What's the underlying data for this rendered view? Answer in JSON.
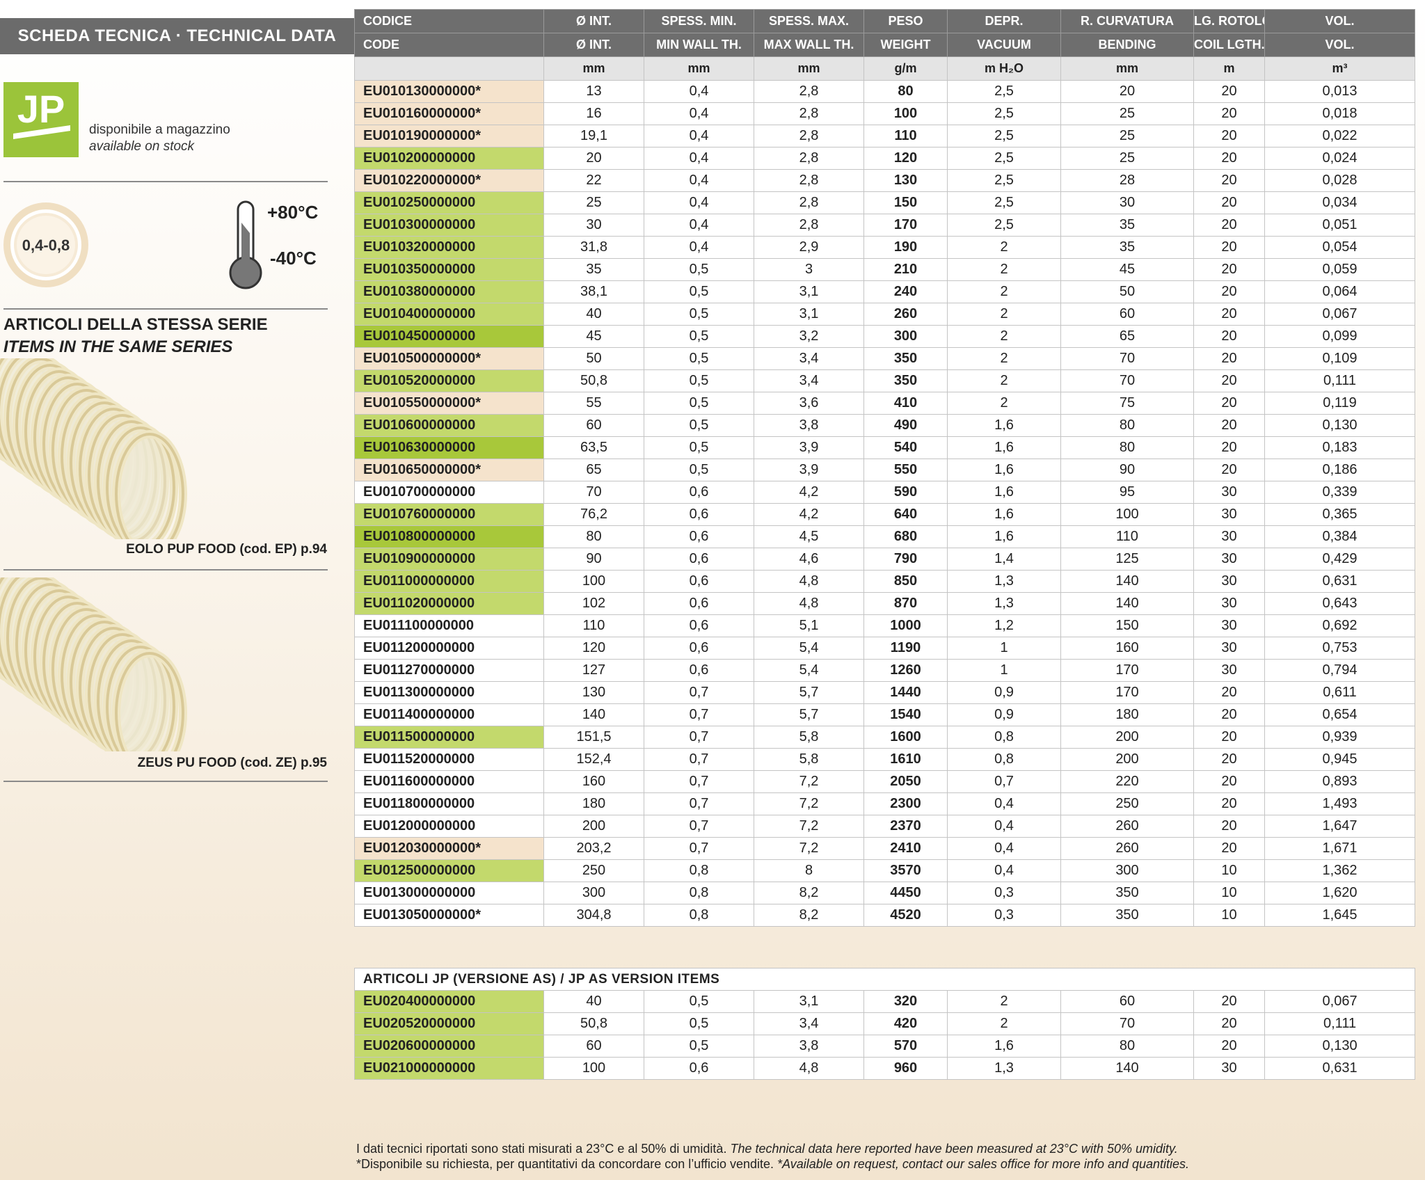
{
  "header": {
    "title": "SCHEDA TECNICA · TECHNICAL DATA"
  },
  "sidebar": {
    "logo": "JP",
    "stock_it": "disponibile a magazzino",
    "stock_en": "available on stock",
    "thickness": "0,4-0,8",
    "temp_max": "+80°C",
    "temp_min": "-40°C",
    "series_it": "ARTICOLI DELLA STESSA SERIE",
    "series_en": "ITEMS IN THE SAME SERIES",
    "item1": "EOLO PUP FOOD (cod. EP) p.94",
    "item2": "ZEUS PU FOOD (cod. ZE) p.95"
  },
  "table": {
    "header_it": [
      "CODICE",
      "Ø INT.",
      "SPESS. MIN.",
      "SPESS. MAX.",
      "PESO",
      "DEPR.",
      "R. CURVATURA",
      "LG. ROTOLO",
      "VOL."
    ],
    "header_en": [
      "CODE",
      "Ø INT.",
      "MIN WALL TH.",
      "MAX WALL TH.",
      "WEIGHT",
      "VACUUM",
      "BENDING",
      "COIL LGTH.",
      "VOL."
    ],
    "units": [
      "mm",
      "mm",
      "mm",
      "g/m",
      "m H₂O",
      "mm",
      "m",
      "m³"
    ],
    "rows": [
      [
        "EU010130000000*",
        "13",
        "0,4",
        "2,8",
        "80",
        "2,5",
        "20",
        "20",
        "0,013"
      ],
      [
        "EU010160000000*",
        "16",
        "0,4",
        "2,8",
        "100",
        "2,5",
        "25",
        "20",
        "0,018"
      ],
      [
        "EU010190000000*",
        "19,1",
        "0,4",
        "2,8",
        "110",
        "2,5",
        "25",
        "20",
        "0,022"
      ],
      [
        "EU010200000000",
        "20",
        "0,4",
        "2,8",
        "120",
        "2,5",
        "25",
        "20",
        "0,024"
      ],
      [
        "EU010220000000*",
        "22",
        "0,4",
        "2,8",
        "130",
        "2,5",
        "28",
        "20",
        "0,028"
      ],
      [
        "EU010250000000",
        "25",
        "0,4",
        "2,8",
        "150",
        "2,5",
        "30",
        "20",
        "0,034"
      ],
      [
        "EU010300000000",
        "30",
        "0,4",
        "2,8",
        "170",
        "2,5",
        "35",
        "20",
        "0,051"
      ],
      [
        "EU010320000000",
        "31,8",
        "0,4",
        "2,9",
        "190",
        "2",
        "35",
        "20",
        "0,054"
      ],
      [
        "EU010350000000",
        "35",
        "0,5",
        "3",
        "210",
        "2",
        "45",
        "20",
        "0,059"
      ],
      [
        "EU010380000000",
        "38,1",
        "0,5",
        "3,1",
        "240",
        "2",
        "50",
        "20",
        "0,064"
      ],
      [
        "EU010400000000",
        "40",
        "0,5",
        "3,1",
        "260",
        "2",
        "60",
        "20",
        "0,067"
      ],
      [
        "EU010450000000",
        "45",
        "0,5",
        "3,2",
        "300",
        "2",
        "65",
        "20",
        "0,099"
      ],
      [
        "EU010500000000*",
        "50",
        "0,5",
        "3,4",
        "350",
        "2",
        "70",
        "20",
        "0,109"
      ],
      [
        "EU010520000000",
        "50,8",
        "0,5",
        "3,4",
        "350",
        "2",
        "70",
        "20",
        "0,111"
      ],
      [
        "EU010550000000*",
        "55",
        "0,5",
        "3,6",
        "410",
        "2",
        "75",
        "20",
        "0,119"
      ],
      [
        "EU010600000000",
        "60",
        "0,5",
        "3,8",
        "490",
        "1,6",
        "80",
        "20",
        "0,130"
      ],
      [
        "EU010630000000",
        "63,5",
        "0,5",
        "3,9",
        "540",
        "1,6",
        "80",
        "20",
        "0,183"
      ],
      [
        "EU010650000000*",
        "65",
        "0,5",
        "3,9",
        "550",
        "1,6",
        "90",
        "20",
        "0,186"
      ],
      [
        "EU010700000000",
        "70",
        "0,6",
        "4,2",
        "590",
        "1,6",
        "95",
        "30",
        "0,339"
      ],
      [
        "EU010760000000",
        "76,2",
        "0,6",
        "4,2",
        "640",
        "1,6",
        "100",
        "30",
        "0,365"
      ],
      [
        "EU010800000000",
        "80",
        "0,6",
        "4,5",
        "680",
        "1,6",
        "110",
        "30",
        "0,384"
      ],
      [
        "EU010900000000",
        "90",
        "0,6",
        "4,6",
        "790",
        "1,4",
        "125",
        "30",
        "0,429"
      ],
      [
        "EU011000000000",
        "100",
        "0,6",
        "4,8",
        "850",
        "1,3",
        "140",
        "30",
        "0,631"
      ],
      [
        "EU011020000000",
        "102",
        "0,6",
        "4,8",
        "870",
        "1,3",
        "140",
        "30",
        "0,643"
      ],
      [
        "EU011100000000",
        "110",
        "0,6",
        "5,1",
        "1000",
        "1,2",
        "150",
        "30",
        "0,692"
      ],
      [
        "EU011200000000",
        "120",
        "0,6",
        "5,4",
        "1190",
        "1",
        "160",
        "30",
        "0,753"
      ],
      [
        "EU011270000000",
        "127",
        "0,6",
        "5,4",
        "1260",
        "1",
        "170",
        "30",
        "0,794"
      ],
      [
        "EU011300000000",
        "130",
        "0,7",
        "5,7",
        "1440",
        "0,9",
        "170",
        "20",
        "0,611"
      ],
      [
        "EU011400000000",
        "140",
        "0,7",
        "5,7",
        "1540",
        "0,9",
        "180",
        "20",
        "0,654"
      ],
      [
        "EU011500000000",
        "151,5",
        "0,7",
        "5,8",
        "1600",
        "0,8",
        "200",
        "20",
        "0,939"
      ],
      [
        "EU011520000000",
        "152,4",
        "0,7",
        "5,8",
        "1610",
        "0,8",
        "200",
        "20",
        "0,945"
      ],
      [
        "EU011600000000",
        "160",
        "0,7",
        "7,2",
        "2050",
        "0,7",
        "220",
        "20",
        "0,893"
      ],
      [
        "EU011800000000",
        "180",
        "0,7",
        "7,2",
        "2300",
        "0,4",
        "250",
        "20",
        "1,493"
      ],
      [
        "EU012000000000",
        "200",
        "0,7",
        "7,2",
        "2370",
        "0,4",
        "260",
        "20",
        "1,647"
      ],
      [
        "EU012030000000*",
        "203,2",
        "0,7",
        "7,2",
        "2410",
        "0,4",
        "260",
        "20",
        "1,671"
      ],
      [
        "EU012500000000",
        "250",
        "0,8",
        "8",
        "3570",
        "0,4",
        "300",
        "10",
        "1,362"
      ],
      [
        "EU013000000000",
        "300",
        "0,8",
        "8,2",
        "4450",
        "0,3",
        "350",
        "10",
        "1,620"
      ],
      [
        "EU013050000000*",
        "304,8",
        "0,8",
        "8,2",
        "4520",
        "0,3",
        "350",
        "10",
        "1,645"
      ]
    ],
    "row_colors": [
      "#f5e3cc",
      "#f5e3cc",
      "#f5e3cc",
      "#c3d96c",
      "#f5e3cc",
      "#c3d96c",
      "#c3d96c",
      "#c3d96c",
      "#c3d96c",
      "#c3d96c",
      "#c3d96c",
      "#a8c83a",
      "#f5e3cc",
      "#c3d96c",
      "#f5e3cc",
      "#c3d96c",
      "#a8c83a",
      "#f5e3cc",
      "#ffffff",
      "#c3d96c",
      "#a8c83a",
      "#c3d96c",
      "#c3d96c",
      "#c3d96c",
      "#ffffff",
      "#ffffff",
      "#ffffff",
      "#ffffff",
      "#ffffff",
      "#c3d96c",
      "#ffffff",
      "#ffffff",
      "#ffffff",
      "#ffffff",
      "#f5e3cc",
      "#c3d96c",
      "#ffffff",
      "#ffffff"
    ]
  },
  "as_table": {
    "title": "ARTICOLI JP (VERSIONE AS) / JP AS VERSION ITEMS",
    "rows": [
      [
        "EU020400000000",
        "40",
        "0,5",
        "3,1",
        "320",
        "2",
        "60",
        "20",
        "0,067"
      ],
      [
        "EU020520000000",
        "50,8",
        "0,5",
        "3,4",
        "420",
        "2",
        "70",
        "20",
        "0,111"
      ],
      [
        "EU020600000000",
        "60",
        "0,5",
        "3,8",
        "570",
        "1,6",
        "80",
        "20",
        "0,130"
      ],
      [
        "EU021000000000",
        "100",
        "0,6",
        "4,8",
        "960",
        "1,3",
        "140",
        "30",
        "0,631"
      ]
    ],
    "row_colors": [
      "#c3d96c",
      "#c3d96c",
      "#c3d96c",
      "#c3d96c"
    ]
  },
  "footnotes": {
    "line1_it": "I dati tecnici riportati sono stati misurati a 23°C e al 50% di umidità.",
    "line1_en": "The technical data here reported have been measured at 23°C with 50% umidity.",
    "line2_it": "*Disponibile su richiesta, per quantitativi da concordare con l’ufficio vendite.",
    "line2_en": "*Available on request, contact our sales office for more info and quantities."
  }
}
